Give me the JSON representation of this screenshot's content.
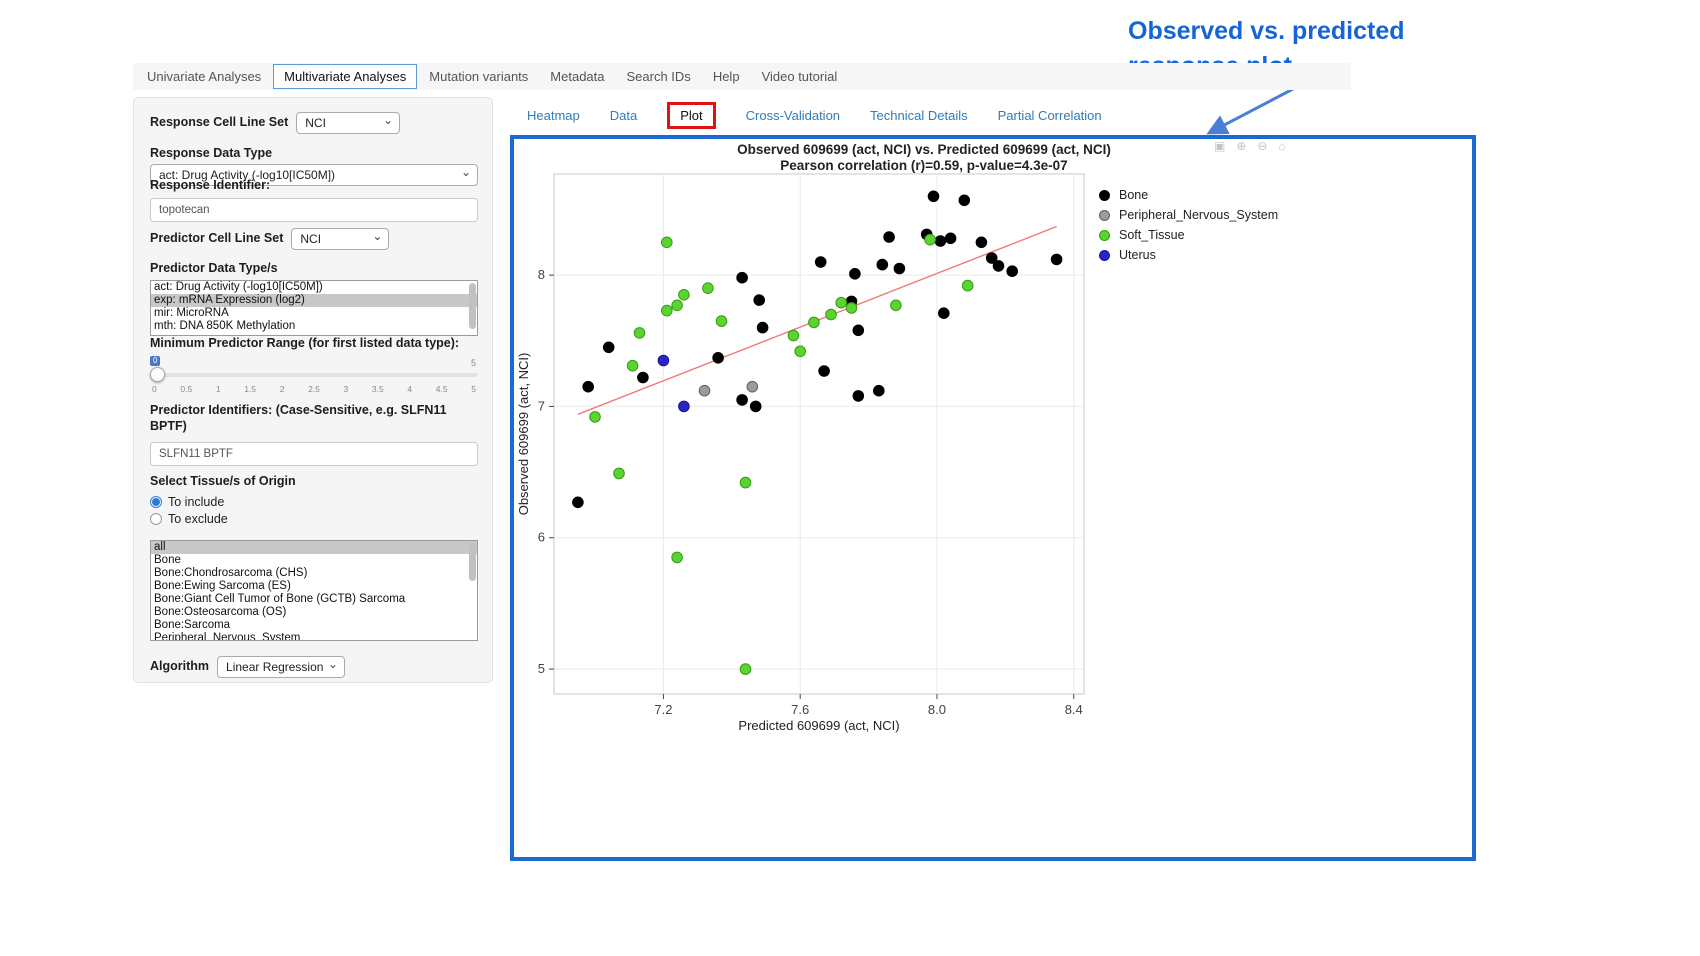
{
  "annotation": {
    "line1": "Observed  vs. predicted",
    "line2": "response plot",
    "color": "#1565d8"
  },
  "top_nav": {
    "items": [
      "Univariate Analyses",
      "Multivariate Analyses",
      "Mutation variants",
      "Metadata",
      "Search IDs",
      "Help",
      "Video tutorial"
    ],
    "active": "Multivariate Analyses"
  },
  "sidebar": {
    "response_cell_line_set_label": "Response Cell Line Set",
    "response_cell_line_set_value": "NCI",
    "response_data_type_label": "Response Data Type",
    "response_data_type_value": "act: Drug Activity (-log10[IC50M])",
    "response_identifier_label": "Response Identifier:",
    "response_identifier_value": "topotecan",
    "predictor_cell_line_set_label": "Predictor Cell Line Set",
    "predictor_cell_line_set_value": "NCI",
    "predictor_data_types_label": "Predictor Data Type/s",
    "predictor_data_types_options": [
      "act: Drug Activity (-log10[IC50M])",
      "exp: mRNA Expression (log2)",
      "mir: MicroRNA",
      "mth: DNA 850K Methylation"
    ],
    "predictor_data_types_selected": "exp: mRNA Expression (log2)",
    "min_predictor_range_label": "Minimum Predictor Range (for first listed data type):",
    "min_predictor_range_value": "0",
    "min_predictor_range_max": "5",
    "min_predictor_range_ticks": [
      "0",
      "0.5",
      "1",
      "1.5",
      "2",
      "2.5",
      "3",
      "3.5",
      "4",
      "4.5",
      "5"
    ],
    "predictor_identifiers_label": "Predictor Identifiers: (Case-Sensitive, e.g. SLFN11 BPTF)",
    "predictor_identifiers_value": "SLFN11 BPTF",
    "tissue_label": "Select Tissue/s of Origin",
    "tissue_include_label": "To include",
    "tissue_exclude_label": "To exclude",
    "tissue_options": [
      "all",
      "Bone",
      "Bone:Chondrosarcoma (CHS)",
      "Bone:Ewing Sarcoma (ES)",
      "Bone:Giant Cell Tumor of Bone (GCTB) Sarcoma",
      "Bone:Osteosarcoma (OS)",
      "Bone:Sarcoma",
      "Peripheral_Nervous_System"
    ],
    "tissue_selected": "all",
    "algorithm_label": "Algorithm",
    "algorithm_value": "Linear Regression"
  },
  "main_tabs": {
    "items": [
      "Heatmap",
      "Data",
      "Plot",
      "Cross-Validation",
      "Technical Details",
      "Partial Correlation"
    ],
    "active": "Plot"
  },
  "modebar_icons": [
    "camera-icon",
    "zoom-in-icon",
    "zoom-out-icon",
    "home-icon"
  ],
  "chart_data": {
    "type": "scatter",
    "title": "Observed 609699 (act, NCI) vs. Predicted 609699 (act, NCI)",
    "subtitle": "Pearson correlation (r)=0.59, p-value=4.3e-07",
    "xlabel": "Predicted 609699 (act, NCI)",
    "ylabel": "Observed 609699 (act, NCI)",
    "xlim": [
      6.88,
      8.43
    ],
    "ylim": [
      4.81,
      8.77
    ],
    "xticks": [
      7.2,
      7.6,
      8.0,
      8.4
    ],
    "yticks": [
      5,
      6,
      7,
      8
    ],
    "grid": true,
    "legend_position": "right",
    "regression_line": {
      "x1": 6.95,
      "y1": 6.94,
      "x2": 8.35,
      "y2": 8.37,
      "color": "#ee7a7a"
    },
    "series": [
      {
        "name": "Bone",
        "color": "#000000",
        "stroke": "#000000",
        "points": [
          [
            6.98,
            7.15
          ],
          [
            7.04,
            7.45
          ],
          [
            6.95,
            6.27
          ],
          [
            7.14,
            7.22
          ],
          [
            7.43,
            7.98
          ],
          [
            7.36,
            7.37
          ],
          [
            7.48,
            7.81
          ],
          [
            7.49,
            7.6
          ],
          [
            7.47,
            7.0
          ],
          [
            7.43,
            7.05
          ],
          [
            7.66,
            8.1
          ],
          [
            7.67,
            7.27
          ],
          [
            7.76,
            8.01
          ],
          [
            7.75,
            7.8
          ],
          [
            7.77,
            7.58
          ],
          [
            7.77,
            7.08
          ],
          [
            7.83,
            7.12
          ],
          [
            7.84,
            8.08
          ],
          [
            7.86,
            8.29
          ],
          [
            7.89,
            8.05
          ],
          [
            7.97,
            8.31
          ],
          [
            7.99,
            8.6
          ],
          [
            8.01,
            8.26
          ],
          [
            8.04,
            8.28
          ],
          [
            8.02,
            7.71
          ],
          [
            8.08,
            8.57
          ],
          [
            8.13,
            8.25
          ],
          [
            8.16,
            8.13
          ],
          [
            8.18,
            8.07
          ],
          [
            8.22,
            8.03
          ],
          [
            8.35,
            8.12
          ]
        ]
      },
      {
        "name": "Peripheral_Nervous_System",
        "color": "#9b9b9b",
        "stroke": "#5f5f5f",
        "points": [
          [
            7.32,
            7.12
          ],
          [
            7.46,
            7.15
          ]
        ]
      },
      {
        "name": "Soft_Tissue",
        "color": "#5ad42e",
        "stroke": "#379a18",
        "points": [
          [
            7.0,
            6.92
          ],
          [
            7.07,
            6.49
          ],
          [
            7.11,
            7.31
          ],
          [
            7.13,
            7.56
          ],
          [
            7.21,
            8.25
          ],
          [
            7.21,
            7.73
          ],
          [
            7.24,
            7.77
          ],
          [
            7.26,
            7.85
          ],
          [
            7.24,
            5.85
          ],
          [
            7.33,
            7.9
          ],
          [
            7.37,
            7.65
          ],
          [
            7.44,
            6.42
          ],
          [
            7.44,
            5.0
          ],
          [
            7.58,
            7.54
          ],
          [
            7.6,
            7.42
          ],
          [
            7.64,
            7.64
          ],
          [
            7.69,
            7.7
          ],
          [
            7.72,
            7.79
          ],
          [
            7.75,
            7.75
          ],
          [
            7.88,
            7.77
          ],
          [
            7.98,
            8.27
          ],
          [
            8.09,
            7.92
          ]
        ]
      },
      {
        "name": "Uterus",
        "color": "#2a24c8",
        "stroke": "#1a1687",
        "points": [
          [
            7.2,
            7.35
          ],
          [
            7.26,
            7.0
          ]
        ]
      }
    ]
  }
}
